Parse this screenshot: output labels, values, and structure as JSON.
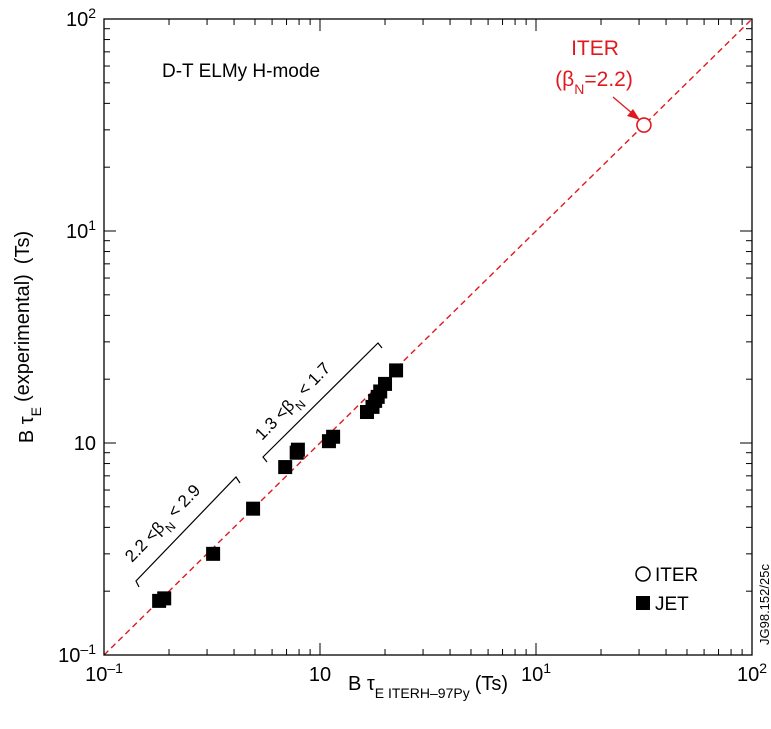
{
  "chart_data": {
    "type": "scatter",
    "title": "D-T ELMy H-mode",
    "xlabel": {
      "main": "B τ",
      "sub": "E ITERH–97Py",
      "unit": "(Ts)"
    },
    "ylabel": {
      "main": "B τ",
      "sub": "E",
      "rest": "(experimental)",
      "unit": "(Ts)"
    },
    "x_scale": "log",
    "y_scale": "log",
    "xlim": [
      0.1,
      100
    ],
    "ylim": [
      0.1,
      100
    ],
    "x_ticks": [
      {
        "value": 0.1,
        "base": "10",
        "exp": "–1"
      },
      {
        "value": 1,
        "base": "10",
        "exp": ""
      },
      {
        "value": 10,
        "base": "10",
        "exp": "1"
      },
      {
        "value": 100,
        "base": "10",
        "exp": "2"
      }
    ],
    "y_ticks": [
      {
        "value": 0.1,
        "base": "10",
        "exp": "–1"
      },
      {
        "value": 1,
        "base": "10",
        "exp": ""
      },
      {
        "value": 10,
        "base": "10",
        "exp": "1"
      },
      {
        "value": 100,
        "base": "10",
        "exp": "2"
      }
    ],
    "grid": false,
    "series": [
      {
        "name": "JET",
        "marker": "filled-square",
        "color": "#000000",
        "points": [
          [
            0.18,
            0.18
          ],
          [
            0.19,
            0.185
          ],
          [
            0.32,
            0.3
          ],
          [
            0.49,
            0.49
          ],
          [
            0.69,
            0.77
          ],
          [
            0.78,
            0.9
          ],
          [
            0.79,
            0.93
          ],
          [
            1.1,
            1.02
          ],
          [
            1.15,
            1.07
          ],
          [
            1.65,
            1.4
          ],
          [
            1.75,
            1.48
          ],
          [
            1.8,
            1.58
          ],
          [
            1.85,
            1.65
          ],
          [
            1.9,
            1.75
          ],
          [
            2.0,
            1.9
          ],
          [
            2.25,
            2.2
          ]
        ]
      },
      {
        "name": "ITER",
        "marker": "open-circle",
        "color": "#e0191f",
        "points": [
          [
            31.6,
            31.6
          ]
        ]
      }
    ],
    "identity_line": {
      "style": "dashed",
      "color": "#e0191f"
    },
    "annotations": {
      "iter_label": "ITER",
      "iter_beta_prefix": "(β",
      "iter_beta_sub": "N",
      "iter_beta_suffix": "=2.2)",
      "bracket_low": {
        "prefix": "2.2 <β",
        "sub": "N",
        "suffix": " < 2.9"
      },
      "bracket_high": {
        "prefix": "1.3 <β",
        "sub": "N",
        "suffix": " < 1.7"
      }
    },
    "legend": {
      "position": "bottom-right",
      "items": [
        {
          "label": "ITER",
          "marker": "open-circle"
        },
        {
          "label": "JET",
          "marker": "filled-square"
        }
      ]
    },
    "figure_id": "JG98.152/25c"
  }
}
